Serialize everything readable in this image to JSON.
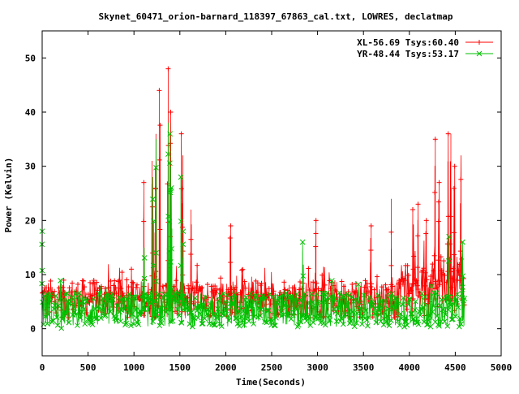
{
  "chart_data": {
    "type": "scatter",
    "title": "Skynet_60471_orion-barnard_118397_67863_cal.txt, LOWRES, declatmap",
    "xlabel": "Time(Seconds)",
    "ylabel": "Power (Kelvin)",
    "xlim": [
      0,
      5000
    ],
    "ylim": [
      -5,
      55
    ],
    "x_ticks": [
      0,
      500,
      1000,
      1500,
      2000,
      2500,
      3000,
      3500,
      4000,
      4500,
      5000
    ],
    "y_ticks": [
      0,
      10,
      20,
      30,
      40,
      50
    ],
    "grid": false,
    "legend_position": "top-right",
    "x_range_of_data": [
      0,
      4600
    ],
    "series": [
      {
        "name": "XL-56.69 Tsys:60.40",
        "color": "#ff0000",
        "marker": "plus",
        "baseline": 5.5,
        "noise_range": [
          2,
          12
        ],
        "peaks": [
          {
            "x": 1110,
            "y": 27
          },
          {
            "x": 1200,
            "y": 31
          },
          {
            "x": 1230,
            "y": 30
          },
          {
            "x": 1240,
            "y": 36
          },
          {
            "x": 1280,
            "y": 44
          },
          {
            "x": 1370,
            "y": 48
          },
          {
            "x": 1395,
            "y": 40
          },
          {
            "x": 1520,
            "y": 36
          },
          {
            "x": 1530,
            "y": 32
          },
          {
            "x": 1620,
            "y": 22
          },
          {
            "x": 2050,
            "y": 19
          },
          {
            "x": 2980,
            "y": 20
          },
          {
            "x": 3580,
            "y": 19
          },
          {
            "x": 3800,
            "y": 24
          },
          {
            "x": 4040,
            "y": 22
          },
          {
            "x": 4090,
            "y": 23
          },
          {
            "x": 4180,
            "y": 20
          },
          {
            "x": 4280,
            "y": 35
          },
          {
            "x": 4320,
            "y": 27
          },
          {
            "x": 4420,
            "y": 36
          },
          {
            "x": 4450,
            "y": 36
          },
          {
            "x": 4490,
            "y": 30
          },
          {
            "x": 4560,
            "y": 32
          }
        ]
      },
      {
        "name": "YR-48.44 Tsys:53.17",
        "color": "#00c000",
        "marker": "cross",
        "baseline": 3.5,
        "noise_range": [
          0,
          9
        ],
        "peaks": [
          {
            "x": 0,
            "y": 18
          },
          {
            "x": 1110,
            "y": 15
          },
          {
            "x": 1210,
            "y": 28
          },
          {
            "x": 1240,
            "y": 35
          },
          {
            "x": 1370,
            "y": 38
          },
          {
            "x": 1390,
            "y": 36
          },
          {
            "x": 1400,
            "y": 30
          },
          {
            "x": 1410,
            "y": 26
          },
          {
            "x": 1515,
            "y": 28
          },
          {
            "x": 1535,
            "y": 18
          },
          {
            "x": 2840,
            "y": 16
          },
          {
            "x": 4430,
            "y": 17
          },
          {
            "x": 4580,
            "y": 16
          }
        ]
      }
    ]
  }
}
